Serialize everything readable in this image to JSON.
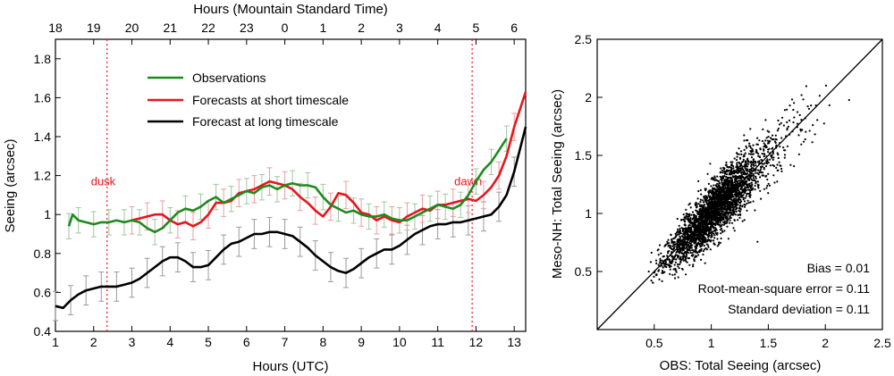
{
  "chart_data": [
    {
      "type": "line",
      "xlabel": "Hours (UTC)",
      "ylabel": "Seeing (arcsec)",
      "top_axis_label": "Hours (Mountain Standard Time)",
      "xlim": [
        1,
        13.3
      ],
      "ylim": [
        0.4,
        1.9
      ],
      "x_ticks": [
        "1",
        "2",
        "3",
        "4",
        "5",
        "6",
        "7",
        "8",
        "9",
        "10",
        "11",
        "12",
        "13"
      ],
      "y_ticks": [
        "0.4",
        "0.6",
        "0.8",
        "1",
        "1.2",
        "1.4",
        "1.6",
        "1.8"
      ],
      "top_ticks": [
        "18",
        "19",
        "20",
        "21",
        "22",
        "23",
        "0",
        "1",
        "2",
        "3",
        "4",
        "5",
        "6"
      ],
      "annotations": [
        {
          "text": "dusk",
          "x": 2.35
        },
        {
          "text": "dawn",
          "x": 11.9
        }
      ],
      "grid": false,
      "legend_position": "top-center",
      "series": [
        {
          "name": "Observations",
          "color": "#1f8a1f",
          "x": [
            1.35,
            1.45,
            1.6,
            1.8,
            2.0,
            2.2,
            2.4,
            2.6,
            2.8,
            3.0,
            3.2,
            3.4,
            3.6,
            3.8,
            4.0,
            4.2,
            4.4,
            4.6,
            4.8,
            5.0,
            5.2,
            5.4,
            5.6,
            5.8,
            6.0,
            6.2,
            6.4,
            6.6,
            6.8,
            7.0,
            7.2,
            7.4,
            7.6,
            7.8,
            8.0,
            8.2,
            8.4,
            8.6,
            8.8,
            9.0,
            9.2,
            9.4,
            9.6,
            9.8,
            10.0,
            10.2,
            10.4,
            10.6,
            10.8,
            11.0,
            11.2,
            11.4,
            11.6,
            11.8,
            12.0,
            12.2,
            12.4,
            12.6,
            12.8
          ],
          "y": [
            0.94,
            1.0,
            0.97,
            0.96,
            0.95,
            0.96,
            0.96,
            0.97,
            0.96,
            0.97,
            0.96,
            0.93,
            0.91,
            0.93,
            0.97,
            1.01,
            1.03,
            1.02,
            1.04,
            1.07,
            1.09,
            1.06,
            1.08,
            1.1,
            1.12,
            1.11,
            1.14,
            1.15,
            1.13,
            1.15,
            1.16,
            1.15,
            1.15,
            1.14,
            1.09,
            1.05,
            1.03,
            1.01,
            1.02,
            1.0,
            0.99,
            0.99,
            1.0,
            0.98,
            0.97,
            0.97,
            0.99,
            1.01,
            1.03,
            1.05,
            1.04,
            1.03,
            1.05,
            1.1,
            1.17,
            1.23,
            1.27,
            1.33,
            1.39
          ]
        },
        {
          "name": "Forecasts at short timescale",
          "color": "#e8141e",
          "x": [
            3.0,
            3.2,
            3.4,
            3.6,
            3.8,
            4.0,
            4.2,
            4.4,
            4.6,
            4.8,
            5.0,
            5.2,
            5.4,
            5.6,
            5.8,
            6.0,
            6.2,
            6.4,
            6.6,
            6.8,
            7.0,
            7.2,
            7.4,
            7.6,
            7.8,
            8.0,
            8.2,
            8.4,
            8.6,
            8.8,
            9.0,
            9.2,
            9.4,
            9.6,
            9.8,
            10.0,
            10.2,
            10.4,
            10.6,
            10.8,
            11.0,
            11.2,
            11.4,
            11.6,
            11.8,
            12.0,
            12.2,
            12.4,
            12.6,
            12.8,
            13.0,
            13.3
          ],
          "y": [
            0.97,
            0.98,
            0.99,
            1.0,
            1.0,
            0.97,
            0.95,
            0.96,
            0.94,
            0.96,
            1.0,
            1.06,
            1.06,
            1.07,
            1.11,
            1.12,
            1.13,
            1.15,
            1.17,
            1.16,
            1.15,
            1.13,
            1.09,
            1.06,
            1.02,
            0.99,
            1.04,
            1.11,
            1.1,
            1.06,
            1.01,
            1.0,
            0.97,
            0.99,
            0.97,
            0.96,
            0.99,
            1.01,
            1.03,
            1.02,
            1.05,
            1.05,
            1.06,
            1.07,
            1.08,
            1.07,
            1.1,
            1.14,
            1.2,
            1.3,
            1.45,
            1.63
          ]
        },
        {
          "name": "Forecast at long timescale",
          "color": "#000000",
          "x": [
            1.0,
            1.2,
            1.4,
            1.6,
            1.8,
            2.0,
            2.2,
            2.4,
            2.6,
            2.8,
            3.0,
            3.2,
            3.4,
            3.6,
            3.8,
            4.0,
            4.2,
            4.4,
            4.6,
            4.8,
            5.0,
            5.2,
            5.4,
            5.6,
            5.8,
            6.0,
            6.2,
            6.4,
            6.6,
            6.8,
            7.0,
            7.2,
            7.4,
            7.6,
            7.8,
            8.0,
            8.2,
            8.4,
            8.6,
            8.8,
            9.0,
            9.2,
            9.4,
            9.6,
            9.8,
            10.0,
            10.2,
            10.4,
            10.6,
            10.8,
            11.0,
            11.2,
            11.4,
            11.6,
            11.8,
            12.0,
            12.2,
            12.4,
            12.6,
            12.8,
            13.0,
            13.3
          ],
          "y": [
            0.53,
            0.52,
            0.56,
            0.59,
            0.61,
            0.62,
            0.63,
            0.63,
            0.63,
            0.64,
            0.65,
            0.67,
            0.7,
            0.73,
            0.76,
            0.78,
            0.78,
            0.76,
            0.73,
            0.73,
            0.74,
            0.78,
            0.82,
            0.85,
            0.86,
            0.88,
            0.9,
            0.9,
            0.91,
            0.91,
            0.9,
            0.89,
            0.86,
            0.83,
            0.79,
            0.76,
            0.73,
            0.71,
            0.7,
            0.72,
            0.75,
            0.78,
            0.8,
            0.82,
            0.82,
            0.84,
            0.87,
            0.9,
            0.92,
            0.94,
            0.95,
            0.95,
            0.96,
            0.96,
            0.97,
            0.98,
            0.99,
            1.0,
            1.04,
            1.1,
            1.22,
            1.45
          ]
        }
      ]
    },
    {
      "type": "scatter",
      "xlabel": "OBS: Total Seeing (arcsec)",
      "ylabel": "Meso-NH: Total Seeing (arcsec)",
      "xlim": [
        0,
        2.5
      ],
      "ylim": [
        0,
        2.5
      ],
      "x_ticks": [
        "0.5",
        "1",
        "1.5",
        "2",
        "2.5"
      ],
      "y_ticks": [
        "0.5",
        "1",
        "1.5",
        "2",
        "2.5"
      ],
      "grid": false,
      "reference_line": "y = x",
      "point_color": "#000000",
      "distribution": {
        "center": 1.0,
        "count_estimate": 3000
      },
      "stats": [
        {
          "label": "Bias = 0.01",
          "value": 0.01
        },
        {
          "label": "Root-mean-square error = 0.11",
          "value": 0.11
        },
        {
          "label": "Standard deviation = 0.11",
          "value": 0.11
        }
      ]
    }
  ]
}
